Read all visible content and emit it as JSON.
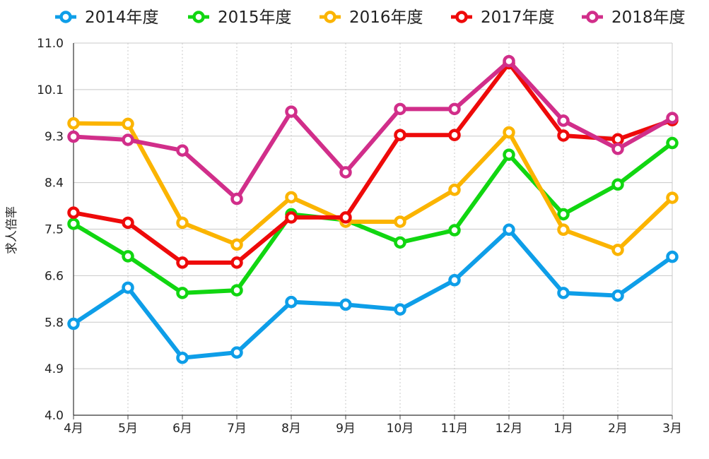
{
  "chart_data": {
    "type": "line",
    "title": "",
    "xlabel": "",
    "ylabel": "求人倍率",
    "categories": [
      "4月",
      "5月",
      "6月",
      "7月",
      "8月",
      "9月",
      "10月",
      "11月",
      "12月",
      "1月",
      "2月",
      "3月"
    ],
    "y_ticks": [
      "4.0",
      "4.9",
      "5.8",
      "6.6",
      "7.5",
      "8.4",
      "9.3",
      "10.1",
      "11.0"
    ],
    "ylim": [
      4.0,
      11.0
    ],
    "grid": true,
    "legend_position": "top",
    "series": [
      {
        "name": "2014年度",
        "color": "#0e9ee8",
        "values": [
          5.72,
          6.4,
          5.08,
          5.18,
          6.13,
          6.08,
          5.99,
          6.54,
          7.49,
          6.3,
          6.25,
          6.98
        ]
      },
      {
        "name": "2015年度",
        "color": "#11d611",
        "values": [
          7.6,
          6.99,
          6.3,
          6.35,
          7.78,
          7.67,
          7.25,
          7.48,
          8.9,
          7.78,
          8.34,
          9.12
        ]
      },
      {
        "name": "2016年度",
        "color": "#fbb400",
        "values": [
          9.49,
          9.48,
          7.62,
          7.21,
          8.1,
          7.64,
          7.64,
          8.24,
          9.32,
          7.49,
          7.11,
          8.09
        ]
      },
      {
        "name": "2017年度",
        "color": "#ee0a0a",
        "values": [
          7.81,
          7.62,
          6.87,
          6.87,
          7.72,
          7.72,
          9.27,
          9.27,
          10.62,
          9.26,
          9.19,
          9.55
        ]
      },
      {
        "name": "2018年度",
        "color": "#d12e8a",
        "values": [
          9.24,
          9.18,
          8.98,
          8.07,
          9.71,
          8.57,
          9.76,
          9.76,
          10.66,
          9.54,
          9.01,
          9.59
        ]
      }
    ]
  }
}
